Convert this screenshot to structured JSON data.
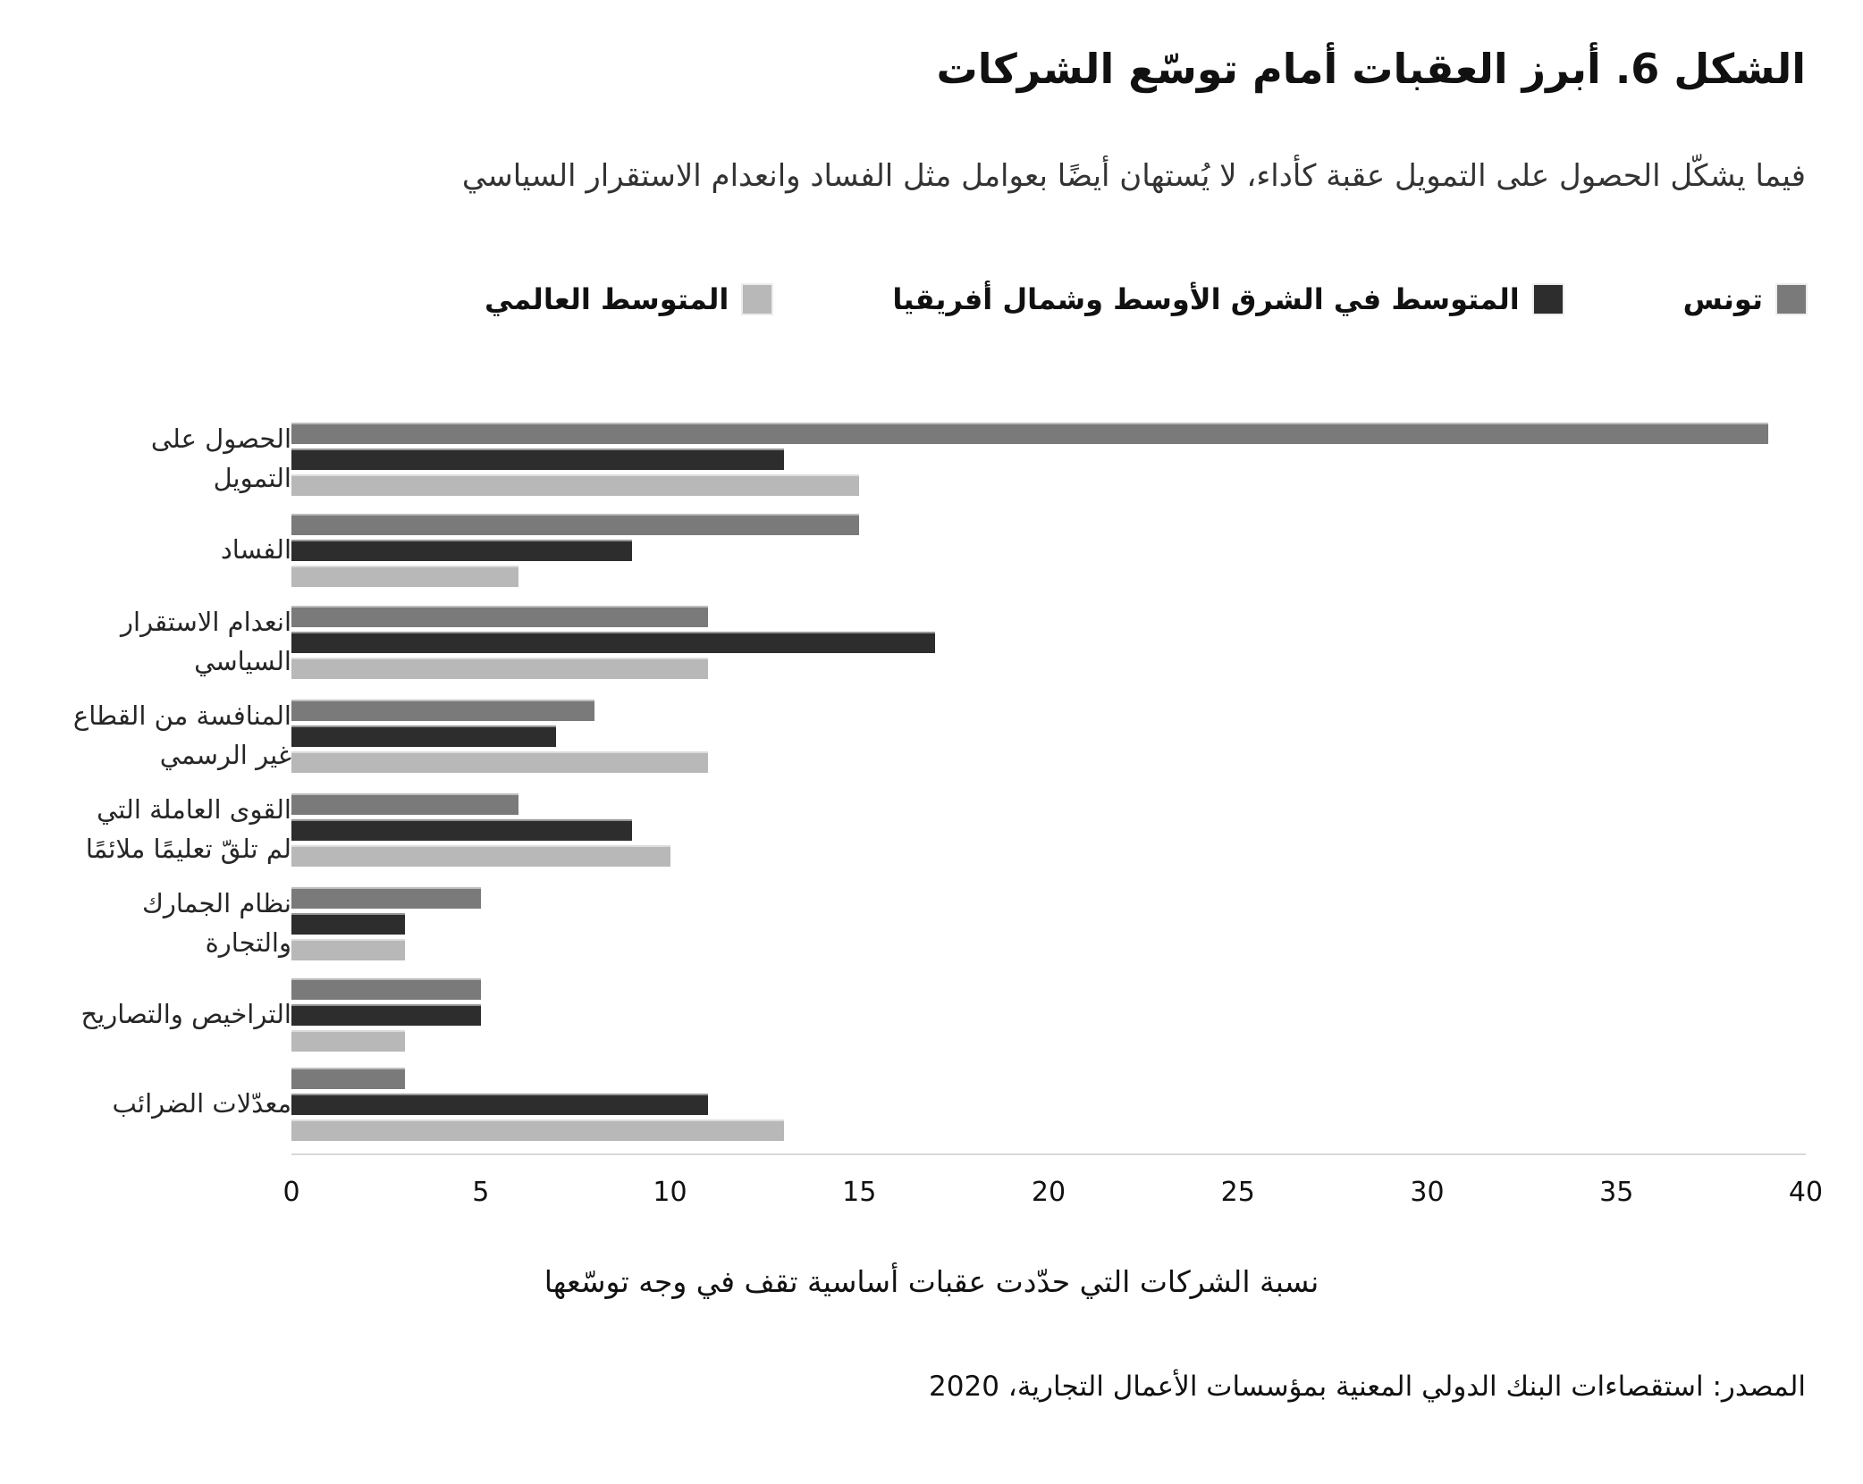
{
  "figure": {
    "title": "الشكل 6. أبرز العقبات أمام توسّع الشركات",
    "subtitle": "فيما يشكّل الحصول على التمويل عقبة كأداء، لا يُستهان أيضًا بعوامل مثل الفساد وانعدام الاستقرار السياسي",
    "source": "المصدر: استقصاءات البنك الدولي المعنية بمؤسسات الأعمال التجارية، 2020"
  },
  "colors": {
    "tunisia": "#7a7a7a",
    "mena": "#2d2d2d",
    "world": "#b8b8b8",
    "axis_line": "#d9d9d9",
    "text": "#1a1a1a"
  },
  "chart_data": {
    "type": "bar",
    "orientation": "horizontal",
    "title": "الشكل 6. أبرز العقبات أمام توسّع الشركات",
    "subtitle": "فيما يشكّل الحصول على التمويل عقبة كأداء، لا يُستهان أيضًا بعوامل مثل الفساد وانعدام الاستقرار السياسي",
    "xlabel": "نسبة الشركات التي حدّدت عقبات أساسية تقف في وجه توسّعها",
    "ylabel": "",
    "xlim": [
      0,
      40
    ],
    "xticks": [
      0,
      5,
      10,
      15,
      20,
      25,
      30,
      35,
      40
    ],
    "grid": false,
    "legend_position": "top",
    "categories": [
      "الحصول على التمويل",
      "الفساد",
      "انعدام الاستقرار السياسي",
      "المنافسة من القطاع غير الرسمي",
      "القوى العاملة التي لم تلقّ تعليمًا ملائمًا",
      "نظام الجمارك والتجارة",
      "التراخيص والتصاريح",
      "معدّلات الضرائب"
    ],
    "series": [
      {
        "key": "tunisia",
        "name": "تونس",
        "color_key": "tunisia",
        "values": [
          39,
          15,
          11,
          8,
          6,
          5,
          5,
          3
        ]
      },
      {
        "key": "mena-average",
        "name": "المتوسط في الشرق الأوسط وشمال أفريقيا",
        "color_key": "mena",
        "values": [
          13,
          9,
          17,
          7,
          9,
          3,
          5,
          11
        ]
      },
      {
        "key": "world-average",
        "name": "المتوسط العالمي",
        "color_key": "world",
        "values": [
          15,
          6,
          11,
          11,
          10,
          3,
          3,
          13
        ]
      }
    ]
  }
}
